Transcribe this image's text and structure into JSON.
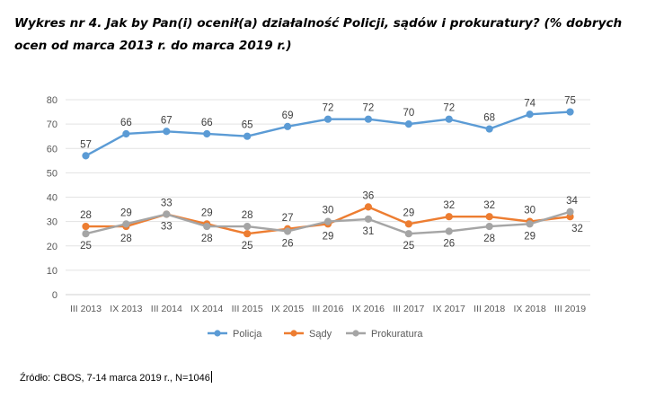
{
  "title": "Wykres nr 4. Jak by Pan(i) ocenił(a) działalność Policji, sądów i prokuratury? (% dobrych ocen od marca 2013 r. do marca 2019 r.)",
  "source": "Źródło: CBOS, 7-14 marca 2019 r., N=1046",
  "chart_data": {
    "type": "line",
    "title": "Wykres nr 4. Jak by Pan(i) ocenił(a) działalność Policji, sądów i prokuratury? (% dobrych ocen od marca 2013 r. do marca 2019 r.)",
    "xlabel": "",
    "ylabel": "",
    "ylim": [
      0,
      80
    ],
    "yticks": [
      0,
      10,
      20,
      30,
      40,
      50,
      60,
      70,
      80
    ],
    "grid": true,
    "legend_position": "bottom",
    "categories": [
      "III 2013",
      "IX 2013",
      "III 2014",
      "IX 2014",
      "III 2015",
      "IX 2015",
      "III 2016",
      "IX 2016",
      "III 2017",
      "IX 2017",
      "III 2018",
      "IX 2018",
      "III 2019"
    ],
    "series": [
      {
        "name": "Policja",
        "color": "#5b9bd5",
        "values": [
          57,
          66,
          67,
          66,
          65,
          69,
          72,
          72,
          70,
          72,
          68,
          74,
          75
        ]
      },
      {
        "name": "Sądy",
        "color": "#ed7d31",
        "values": [
          28,
          28,
          33,
          29,
          25,
          27,
          29,
          36,
          29,
          32,
          32,
          30,
          32
        ]
      },
      {
        "name": "Prokuratura",
        "color": "#a5a5a5",
        "values": [
          25,
          29,
          33,
          28,
          28,
          26,
          30,
          31,
          25,
          26,
          28,
          29,
          34
        ]
      }
    ]
  }
}
